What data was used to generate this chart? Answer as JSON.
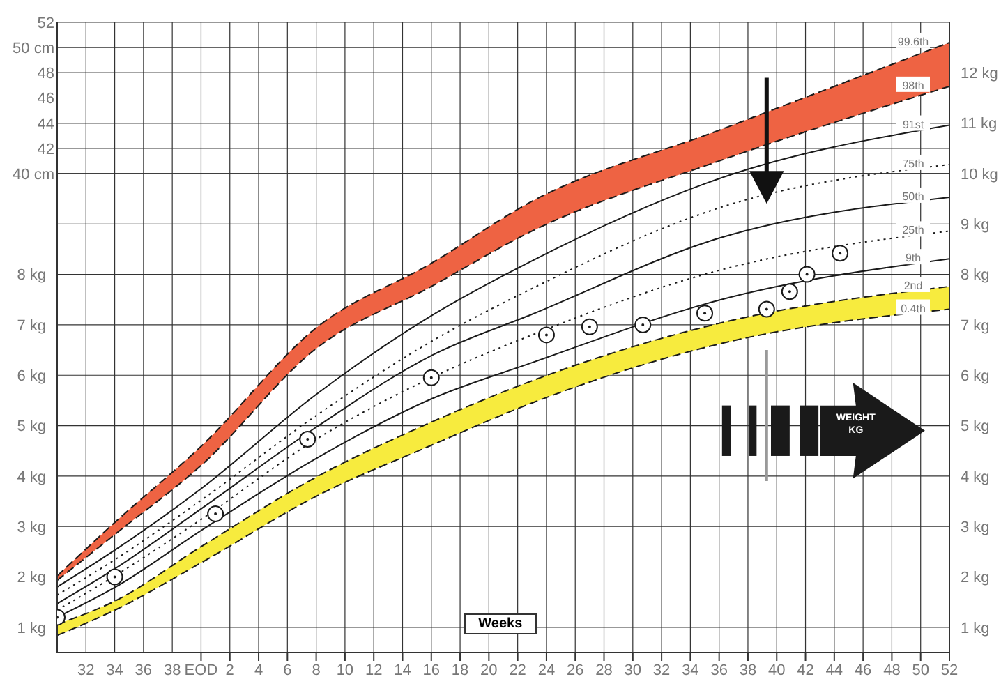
{
  "chart_data": {
    "type": "line",
    "xlabel": "Weeks",
    "x": [
      -10,
      -6,
      0,
      8,
      16,
      23,
      36,
      52
    ],
    "series": [
      {
        "name": "99.6th",
        "type": "area",
        "color": "#ee6343",
        "line_style": "dashed",
        "values": [
          2.02,
          3.08,
          4.59,
          6.94,
          8.22,
          9.45,
          10.86,
          12.6
        ]
      },
      {
        "name": "98th",
        "color": "#1a1a1a",
        "line_style": "dashed",
        "values": [
          1.93,
          2.84,
          4.21,
          6.53,
          7.76,
          8.86,
          10.25,
          11.73
        ]
      },
      {
        "name": "91st",
        "color": "#1a1a1a",
        "line_style": "solid",
        "values": [
          1.8,
          2.53,
          3.75,
          5.62,
          7.18,
          8.27,
          9.9,
          10.96
        ]
      },
      {
        "name": "75th",
        "color": "#1a1a1a",
        "line_style": "dotted",
        "values": [
          1.64,
          2.34,
          3.52,
          5.2,
          6.67,
          7.72,
          9.32,
          10.18
        ]
      },
      {
        "name": "50th",
        "color": "#1a1a1a",
        "line_style": "solid",
        "values": [
          1.47,
          2.16,
          3.35,
          4.97,
          6.39,
          7.21,
          8.72,
          9.53
        ]
      },
      {
        "name": "25th",
        "color": "#1a1a1a",
        "line_style": "dotted",
        "values": [
          1.34,
          2.02,
          3.14,
          4.73,
          5.95,
          6.8,
          8.08,
          8.86
        ]
      },
      {
        "name": "9th",
        "color": "#1a1a1a",
        "line_style": "solid",
        "values": [
          1.2,
          1.79,
          2.92,
          4.35,
          5.53,
          6.25,
          7.49,
          8.31
        ]
      },
      {
        "name": "2nd",
        "type": "area",
        "color": "#f7eb3e",
        "line_style": "dashed",
        "values": [
          1.06,
          1.52,
          2.6,
          3.98,
          5.07,
          5.89,
          7.03,
          7.76
        ]
      },
      {
        "name": "0.4th",
        "color": "#1a1a1a",
        "line_style": "dashed",
        "values": [
          0.84,
          1.34,
          2.28,
          3.6,
          4.61,
          5.45,
          6.62,
          7.31
        ]
      },
      {
        "type": "scatter",
        "color": "#1a1a1a",
        "marker": "circle",
        "x": [
          -10,
          -6,
          1,
          7.4,
          16,
          24,
          27,
          30.7,
          35,
          39.3,
          40.9,
          42.1,
          44.4
        ],
        "values": [
          1.2,
          2.0,
          3.25,
          4.73,
          5.95,
          6.8,
          6.96,
          7.0,
          7.23,
          7.31,
          7.66,
          8.0,
          8.42
        ]
      }
    ],
    "xlim": [
      -10,
      52
    ],
    "x2lim": [
      30,
      92
    ],
    "x2ticks": [
      32,
      34,
      36,
      38
    ],
    "xticks": [
      {
        "value": 0,
        "label": "EOD"
      },
      2,
      4,
      6,
      8,
      10,
      12,
      14,
      16,
      18,
      20,
      22,
      24,
      26,
      28,
      30,
      32,
      34,
      36,
      38,
      40,
      42,
      44,
      46,
      48,
      50,
      52
    ],
    "ylim": [
      0.5,
      13
    ],
    "yticks": [
      {
        "value": 1,
        "label": "1 kg"
      },
      {
        "value": 2,
        "label": "2 kg"
      },
      {
        "value": 3,
        "label": "3 kg"
      },
      {
        "value": 4,
        "label": "4 kg"
      },
      {
        "value": 5,
        "label": "5 kg"
      },
      {
        "value": 6,
        "label": "6 kg"
      },
      {
        "value": 7,
        "label": "7 kg"
      },
      {
        "value": 8,
        "label": "8 kg"
      }
    ],
    "y2lim": [
      0.5,
      13
    ],
    "y2ticks": [
      {
        "value": 1,
        "label": "1 kg"
      },
      {
        "value": 2,
        "label": "2 kg"
      },
      {
        "value": 3,
        "label": "3 kg"
      },
      {
        "value": 4,
        "label": "4 kg"
      },
      {
        "value": 5,
        "label": "5 kg"
      },
      {
        "value": 6,
        "label": "6 kg"
      },
      {
        "value": 7,
        "label": "7 kg"
      },
      {
        "value": 8,
        "label": "8 kg"
      },
      {
        "value": 9,
        "label": "9 kg"
      },
      {
        "value": 10,
        "label": "10 kg"
      },
      {
        "value": 11,
        "label": "11 kg"
      },
      {
        "value": 12,
        "label": "12 kg"
      }
    ],
    "y3lim": [
      2,
      52
    ],
    "y3ticks": [
      {
        "value": 40,
        "label": "40 cm"
      },
      42,
      44,
      46,
      48,
      {
        "value": 50,
        "label": "50 cm"
      },
      52
    ],
    "grid": true,
    "legend": false,
    "annotations": [
      "WEIGHT KG"
    ]
  }
}
